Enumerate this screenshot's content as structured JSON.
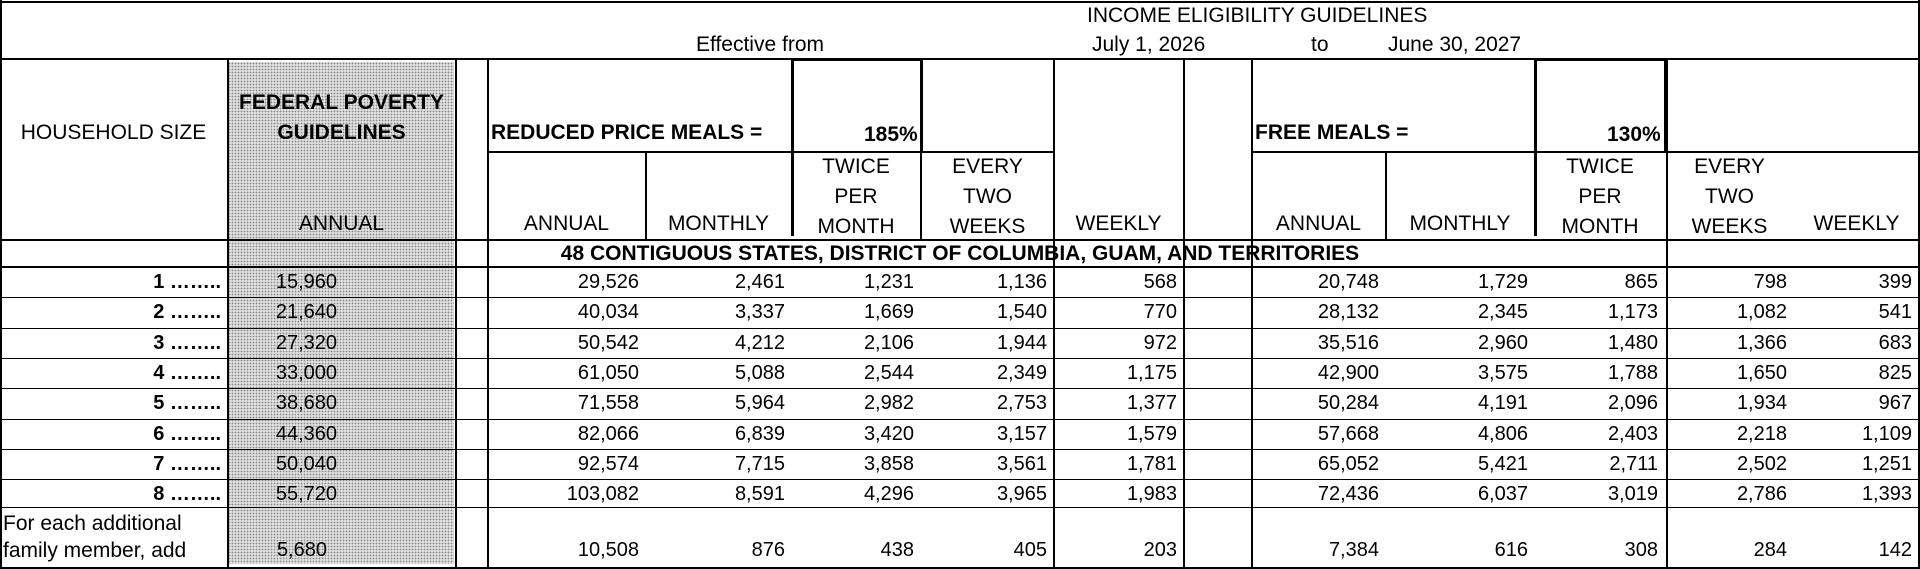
{
  "header": {
    "title": "INCOME ELIGIBILITY GUIDELINES",
    "effective_from": "Effective from",
    "start_date": "July 1, 2026",
    "to": "to",
    "end_date": "June 30, 2027"
  },
  "columns": {
    "household_size": "HOUSEHOLD SIZE",
    "federal_poverty": "FEDERAL POVERTY GUIDELINES",
    "annual": "ANNUAL",
    "reduced_label": "REDUCED PRICE MEALS =",
    "reduced_pct": "185%",
    "free_label": "FREE MEALS =",
    "free_pct": "130%",
    "monthly": "MONTHLY",
    "twice_per_month": [
      "TWICE",
      "PER",
      "MONTH"
    ],
    "every_two_weeks": [
      "EVERY",
      "TWO",
      "WEEKS"
    ],
    "weekly": "WEEKLY"
  },
  "section_title": "48 CONTIGUOUS STATES, DISTRICT OF COLUMBIA, GUAM, AND TERRITORIES",
  "rows": [
    {
      "size": "1 ……..",
      "fpg": "15,960",
      "reduced": [
        "29,526",
        "2,461",
        "1,231",
        "1,136",
        "568"
      ],
      "free": [
        "20,748",
        "1,729",
        "865",
        "798",
        "399"
      ]
    },
    {
      "size": "2 ……..",
      "fpg": "21,640",
      "reduced": [
        "40,034",
        "3,337",
        "1,669",
        "1,540",
        "770"
      ],
      "free": [
        "28,132",
        "2,345",
        "1,173",
        "1,082",
        "541"
      ]
    },
    {
      "size": "3 ……..",
      "fpg": "27,320",
      "reduced": [
        "50,542",
        "4,212",
        "2,106",
        "1,944",
        "972"
      ],
      "free": [
        "35,516",
        "2,960",
        "1,480",
        "1,366",
        "683"
      ]
    },
    {
      "size": "4 ……..",
      "fpg": "33,000",
      "reduced": [
        "61,050",
        "5,088",
        "2,544",
        "2,349",
        "1,175"
      ],
      "free": [
        "42,900",
        "3,575",
        "1,788",
        "1,650",
        "825"
      ]
    },
    {
      "size": "5 ……..",
      "fpg": "38,680",
      "reduced": [
        "71,558",
        "5,964",
        "2,982",
        "2,753",
        "1,377"
      ],
      "free": [
        "50,284",
        "4,191",
        "2,096",
        "1,934",
        "967"
      ]
    },
    {
      "size": "6 ……..",
      "fpg": "44,360",
      "reduced": [
        "82,066",
        "6,839",
        "3,420",
        "3,157",
        "1,579"
      ],
      "free": [
        "57,668",
        "4,806",
        "2,403",
        "2,218",
        "1,109"
      ]
    },
    {
      "size": "7 ……..",
      "fpg": "50,040",
      "reduced": [
        "92,574",
        "7,715",
        "3,858",
        "3,561",
        "1,781"
      ],
      "free": [
        "65,052",
        "5,421",
        "2,711",
        "2,502",
        "1,251"
      ]
    },
    {
      "size": "8 ……..",
      "fpg": "55,720",
      "reduced": [
        "103,082",
        "8,591",
        "4,296",
        "3,965",
        "1,983"
      ],
      "free": [
        "72,436",
        "6,037",
        "3,019",
        "2,786",
        "1,393"
      ]
    }
  ],
  "additional": {
    "label_line1": "For each additional",
    "label_line2": "family member, add",
    "fpg": "5,680",
    "reduced": [
      "10,508",
      "876",
      "438",
      "405",
      "203"
    ],
    "free": [
      "7,384",
      "616",
      "308",
      "284",
      "142"
    ]
  }
}
